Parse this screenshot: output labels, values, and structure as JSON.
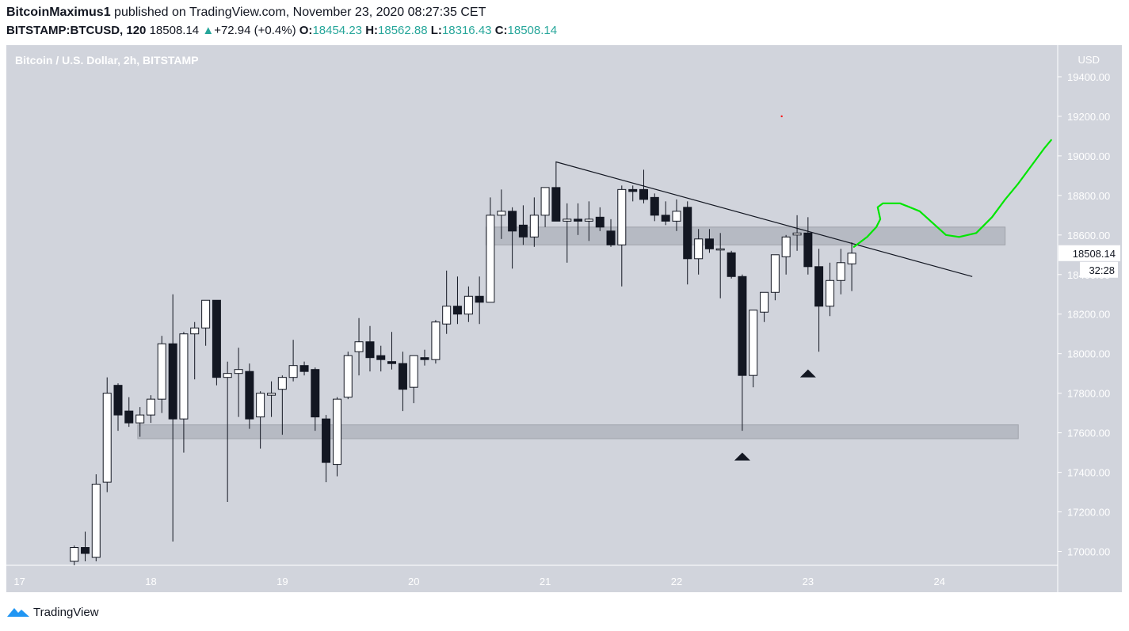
{
  "header": {
    "author": "BitcoinMaximus1",
    "published": "published on TradingView.com, November 23, 2020 08:27:35 CET",
    "symbol": "BITSTAMP:BTCUSD, 120",
    "last": "18508.14",
    "change": "+72.94 (+0.4%)",
    "o_label": "O:",
    "o": "18454.23",
    "h_label": "H:",
    "h": "18562.88",
    "l_label": "L:",
    "l": "18316.43",
    "c_label": "C:",
    "c": "18508.14"
  },
  "footer": {
    "brand": "TradingView"
  },
  "colors": {
    "background": "#d1d4dc",
    "up_fill": "#ffffff",
    "down_fill": "#131722",
    "trendline": "#131722",
    "projection": "#00e600",
    "zone": "#b2b5be",
    "price_label_bg": "#ffffff"
  },
  "chart_data": {
    "type": "candlestick",
    "title": "Bitcoin / U.S. Dollar, 2h, BITSTAMP",
    "currency_label": "USD",
    "y_ticks": [
      17000,
      17200,
      17400,
      17600,
      17800,
      18000,
      18200,
      18400,
      18600,
      18800,
      19000,
      19200,
      19400
    ],
    "y_tick_labels": [
      "17000.00",
      "17200.00",
      "17400.00",
      "17600.00",
      "17800.00",
      "18000.00",
      "18200.00",
      "18400.00",
      "18600.00",
      "18800.00",
      "19000.00",
      "19200.00",
      "19400.00"
    ],
    "ylim": [
      16930,
      19560
    ],
    "x_ticks": [
      "17",
      "18",
      "19",
      "20",
      "21",
      "22",
      "23",
      "24"
    ],
    "x_tick_values": [
      17,
      18,
      19,
      20,
      21,
      22,
      23,
      24
    ],
    "xlim": [
      16.9,
      24.9
    ],
    "last_price_label": "18508.14",
    "countdown_label": "32:28",
    "candles": [
      {
        "x": 17.417,
        "o": 16950,
        "h": 17030,
        "l": 16930,
        "c": 17020
      },
      {
        "x": 17.5,
        "o": 17020,
        "h": 17100,
        "l": 16950,
        "c": 16990
      },
      {
        "x": 17.583,
        "o": 16970,
        "h": 17390,
        "l": 16950,
        "c": 17340
      },
      {
        "x": 17.667,
        "o": 17350,
        "h": 17880,
        "l": 17300,
        "c": 17800
      },
      {
        "x": 17.75,
        "o": 17840,
        "h": 17850,
        "l": 17610,
        "c": 17690
      },
      {
        "x": 17.833,
        "o": 17710,
        "h": 17780,
        "l": 17630,
        "c": 17650
      },
      {
        "x": 17.917,
        "o": 17650,
        "h": 17730,
        "l": 17580,
        "c": 17690
      },
      {
        "x": 18.0,
        "o": 17690,
        "h": 17790,
        "l": 17650,
        "c": 17770
      },
      {
        "x": 18.083,
        "o": 17770,
        "h": 18090,
        "l": 17700,
        "c": 18050
      },
      {
        "x": 18.167,
        "o": 18050,
        "h": 18300,
        "l": 17050,
        "c": 17670
      },
      {
        "x": 18.25,
        "o": 17670,
        "h": 18110,
        "l": 17500,
        "c": 18100
      },
      {
        "x": 18.333,
        "o": 18100,
        "h": 18160,
        "l": 17870,
        "c": 18130
      },
      {
        "x": 18.417,
        "o": 18130,
        "h": 18270,
        "l": 18040,
        "c": 18270
      },
      {
        "x": 18.5,
        "o": 18270,
        "h": 18270,
        "l": 17840,
        "c": 17880
      },
      {
        "x": 18.583,
        "o": 17880,
        "h": 17960,
        "l": 17250,
        "c": 17900
      },
      {
        "x": 18.667,
        "o": 17900,
        "h": 18030,
        "l": 17680,
        "c": 17920
      },
      {
        "x": 18.75,
        "o": 17910,
        "h": 17950,
        "l": 17620,
        "c": 17670
      },
      {
        "x": 18.833,
        "o": 17680,
        "h": 17810,
        "l": 17520,
        "c": 17800
      },
      {
        "x": 18.917,
        "o": 17790,
        "h": 17860,
        "l": 17680,
        "c": 17800
      },
      {
        "x": 19.0,
        "o": 17820,
        "h": 17890,
        "l": 17590,
        "c": 17880
      },
      {
        "x": 19.083,
        "o": 17880,
        "h": 18070,
        "l": 17860,
        "c": 17940
      },
      {
        "x": 19.167,
        "o": 17940,
        "h": 17960,
        "l": 17890,
        "c": 17910
      },
      {
        "x": 19.25,
        "o": 17920,
        "h": 17930,
        "l": 17610,
        "c": 17680
      },
      {
        "x": 19.333,
        "o": 17670,
        "h": 17690,
        "l": 17350,
        "c": 17450
      },
      {
        "x": 19.417,
        "o": 17440,
        "h": 17780,
        "l": 17380,
        "c": 17770
      },
      {
        "x": 19.5,
        "o": 17780,
        "h": 18010,
        "l": 17770,
        "c": 17990
      },
      {
        "x": 19.583,
        "o": 18010,
        "h": 18180,
        "l": 17890,
        "c": 18060
      },
      {
        "x": 19.667,
        "o": 18060,
        "h": 18140,
        "l": 17910,
        "c": 17980
      },
      {
        "x": 19.75,
        "o": 17990,
        "h": 18040,
        "l": 17910,
        "c": 17970
      },
      {
        "x": 19.833,
        "o": 17960,
        "h": 18110,
        "l": 17920,
        "c": 17950
      },
      {
        "x": 19.917,
        "o": 17950,
        "h": 18010,
        "l": 17710,
        "c": 17820
      },
      {
        "x": 20.0,
        "o": 17830,
        "h": 17990,
        "l": 17750,
        "c": 17990
      },
      {
        "x": 20.083,
        "o": 17980,
        "h": 18020,
        "l": 17940,
        "c": 17970
      },
      {
        "x": 20.167,
        "o": 17970,
        "h": 18170,
        "l": 17950,
        "c": 18160
      },
      {
        "x": 20.25,
        "o": 18150,
        "h": 18420,
        "l": 18100,
        "c": 18240
      },
      {
        "x": 20.333,
        "o": 18240,
        "h": 18390,
        "l": 18150,
        "c": 18200
      },
      {
        "x": 20.417,
        "o": 18200,
        "h": 18340,
        "l": 18160,
        "c": 18290
      },
      {
        "x": 20.5,
        "o": 18290,
        "h": 18390,
        "l": 18150,
        "c": 18260
      },
      {
        "x": 20.583,
        "o": 18260,
        "h": 18790,
        "l": 18260,
        "c": 18700
      },
      {
        "x": 20.667,
        "o": 18700,
        "h": 18830,
        "l": 18580,
        "c": 18720
      },
      {
        "x": 20.75,
        "o": 18720,
        "h": 18740,
        "l": 18430,
        "c": 18620
      },
      {
        "x": 20.833,
        "o": 18650,
        "h": 18750,
        "l": 18550,
        "c": 18590
      },
      {
        "x": 20.917,
        "o": 18590,
        "h": 18790,
        "l": 18540,
        "c": 18700
      },
      {
        "x": 21.0,
        "o": 18700,
        "h": 18840,
        "l": 18640,
        "c": 18840
      },
      {
        "x": 21.083,
        "o": 18840,
        "h": 18970,
        "l": 18680,
        "c": 18670
      },
      {
        "x": 21.167,
        "o": 18670,
        "h": 18760,
        "l": 18460,
        "c": 18680
      },
      {
        "x": 21.25,
        "o": 18680,
        "h": 18760,
        "l": 18600,
        "c": 18670
      },
      {
        "x": 21.333,
        "o": 18670,
        "h": 18770,
        "l": 18570,
        "c": 18680
      },
      {
        "x": 21.417,
        "o": 18690,
        "h": 18740,
        "l": 18620,
        "c": 18640
      },
      {
        "x": 21.5,
        "o": 18620,
        "h": 18680,
        "l": 18540,
        "c": 18550
      },
      {
        "x": 21.583,
        "o": 18550,
        "h": 18850,
        "l": 18340,
        "c": 18830
      },
      {
        "x": 21.667,
        "o": 18830,
        "h": 18850,
        "l": 18770,
        "c": 18820
      },
      {
        "x": 21.75,
        "o": 18830,
        "h": 18930,
        "l": 18760,
        "c": 18780
      },
      {
        "x": 21.833,
        "o": 18790,
        "h": 18810,
        "l": 18670,
        "c": 18700
      },
      {
        "x": 21.917,
        "o": 18700,
        "h": 18770,
        "l": 18650,
        "c": 18670
      },
      {
        "x": 22.0,
        "o": 18670,
        "h": 18780,
        "l": 18620,
        "c": 18720
      },
      {
        "x": 22.083,
        "o": 18740,
        "h": 18770,
        "l": 18350,
        "c": 18480
      },
      {
        "x": 22.167,
        "o": 18480,
        "h": 18630,
        "l": 18400,
        "c": 18580
      },
      {
        "x": 22.25,
        "o": 18580,
        "h": 18630,
        "l": 18510,
        "c": 18530
      },
      {
        "x": 22.333,
        "o": 18530,
        "h": 18610,
        "l": 18280,
        "c": 18530
      },
      {
        "x": 22.417,
        "o": 18510,
        "h": 18520,
        "l": 18380,
        "c": 18390
      },
      {
        "x": 22.5,
        "o": 18390,
        "h": 18400,
        "l": 17610,
        "c": 17890
      },
      {
        "x": 22.583,
        "o": 17890,
        "h": 18220,
        "l": 17830,
        "c": 18220
      },
      {
        "x": 22.667,
        "o": 18210,
        "h": 18310,
        "l": 18160,
        "c": 18310
      },
      {
        "x": 22.75,
        "o": 18310,
        "h": 18500,
        "l": 18270,
        "c": 18500
      },
      {
        "x": 22.833,
        "o": 18490,
        "h": 18600,
        "l": 18400,
        "c": 18590
      },
      {
        "x": 22.917,
        "o": 18600,
        "h": 18700,
        "l": 18520,
        "c": 18610
      },
      {
        "x": 23.0,
        "o": 18610,
        "h": 18690,
        "l": 18400,
        "c": 18440
      },
      {
        "x": 23.083,
        "o": 18440,
        "h": 18530,
        "l": 18010,
        "c": 18240
      },
      {
        "x": 23.167,
        "o": 18240,
        "h": 18460,
        "l": 18190,
        "c": 18370
      },
      {
        "x": 23.25,
        "o": 18370,
        "h": 18530,
        "l": 18300,
        "c": 18460
      },
      {
        "x": 23.333,
        "o": 18454.23,
        "h": 18562.88,
        "l": 18316.43,
        "c": 18508.14
      }
    ],
    "zones": [
      {
        "x1": 20.55,
        "x2": 24.5,
        "y1": 18550,
        "y2": 18640
      },
      {
        "x1": 17.9,
        "x2": 24.6,
        "y1": 17570,
        "y2": 17640
      }
    ],
    "trendline": [
      {
        "x": 21.08,
        "y": 18970
      },
      {
        "x": 24.25,
        "y": 18390
      }
    ],
    "markers": [
      {
        "x": 22.5,
        "y": 17480
      },
      {
        "x": 23.0,
        "y": 17900
      }
    ],
    "projection": [
      {
        "x": 23.35,
        "y": 18540
      },
      {
        "x": 23.45,
        "y": 18590
      },
      {
        "x": 23.52,
        "y": 18640
      },
      {
        "x": 23.55,
        "y": 18680
      },
      {
        "x": 23.53,
        "y": 18740
      },
      {
        "x": 23.57,
        "y": 18760
      },
      {
        "x": 23.7,
        "y": 18760
      },
      {
        "x": 23.85,
        "y": 18720
      },
      {
        "x": 23.95,
        "y": 18660
      },
      {
        "x": 24.05,
        "y": 18600
      },
      {
        "x": 24.15,
        "y": 18590
      },
      {
        "x": 24.28,
        "y": 18610
      },
      {
        "x": 24.4,
        "y": 18690
      },
      {
        "x": 24.5,
        "y": 18780
      },
      {
        "x": 24.6,
        "y": 18860
      },
      {
        "x": 24.7,
        "y": 18950
      },
      {
        "x": 24.8,
        "y": 19040
      },
      {
        "x": 24.85,
        "y": 19080
      }
    ],
    "dot": {
      "x": 22.8,
      "y": 19200
    }
  }
}
